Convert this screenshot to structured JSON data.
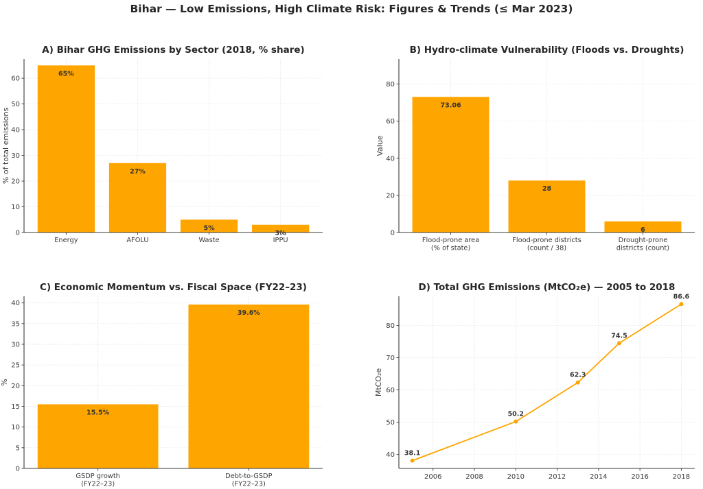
{
  "page_title": "Bihar — Low Emissions, High Climate Risk: Figures & Trends (≤ Mar 2023)",
  "colors": {
    "accent": "#FFA500",
    "title_text": "#262626",
    "tick_text": "#3a3a3a",
    "data_label_text": "#333333",
    "grid": "#d9d9d9",
    "spine": "#3a3a3a",
    "background": "#ffffff"
  },
  "chart_data": [
    {
      "id": "A",
      "type": "bar",
      "title": "A) Bihar GHG Emissions by Sector (2018, % share)",
      "ylabel": "% of total emissions",
      "categories": [
        "Energy",
        "AFOLU",
        "Waste",
        "IPPU"
      ],
      "values": [
        65,
        27,
        5,
        3
      ],
      "data_labels": [
        "65%",
        "27%",
        "5%",
        "3%"
      ],
      "yticks": [
        0,
        10,
        20,
        30,
        40,
        50,
        60
      ],
      "ylim": [
        0,
        67.5
      ],
      "grid": true,
      "legend": "none"
    },
    {
      "id": "B",
      "type": "bar",
      "title": "B) Hydro-climate Vulnerability (Floods vs. Droughts)",
      "ylabel": "Value",
      "categories": [
        "Flood-prone area\n(% of state)",
        "Flood-prone districts\n(count / 38)",
        "Drought-prone\ndistricts (count)"
      ],
      "values": [
        73.06,
        28,
        6
      ],
      "data_labels": [
        "73.06",
        "28",
        "6"
      ],
      "yticks": [
        0,
        20,
        40,
        60,
        80
      ],
      "ylim": [
        0,
        93.5
      ],
      "grid": true,
      "legend": "none"
    },
    {
      "id": "C",
      "type": "bar",
      "title": "C) Economic Momentum vs. Fiscal Space (FY22–23)",
      "ylabel": "%",
      "categories": [
        "GSDP growth\n(FY22–23)",
        "Debt-to-GSDP\n(FY22–23)"
      ],
      "values": [
        15.5,
        39.6
      ],
      "data_labels": [
        "15.5%",
        "39.6%"
      ],
      "yticks": [
        0,
        5,
        10,
        15,
        20,
        25,
        30,
        35,
        40
      ],
      "ylim": [
        0,
        41.6
      ],
      "grid": true,
      "legend": "none"
    },
    {
      "id": "D",
      "type": "line",
      "title": "D) Total GHG Emissions (MtCO₂e) — 2005 to 2018",
      "ylabel": "MtCO₂e",
      "x": [
        2005,
        2010,
        2013,
        2015,
        2018
      ],
      "values": [
        38.1,
        50.2,
        62.3,
        74.5,
        86.6
      ],
      "data_labels": [
        "38.1",
        "50.2",
        "62.3",
        "74.5",
        "86.6"
      ],
      "xticks": [
        2006,
        2008,
        2010,
        2012,
        2014,
        2016,
        2018
      ],
      "yticks": [
        40,
        50,
        60,
        70,
        80
      ],
      "xlim": [
        2004.35,
        2018.65
      ],
      "ylim": [
        35.68,
        89.02
      ],
      "grid": true,
      "legend": "none"
    }
  ]
}
